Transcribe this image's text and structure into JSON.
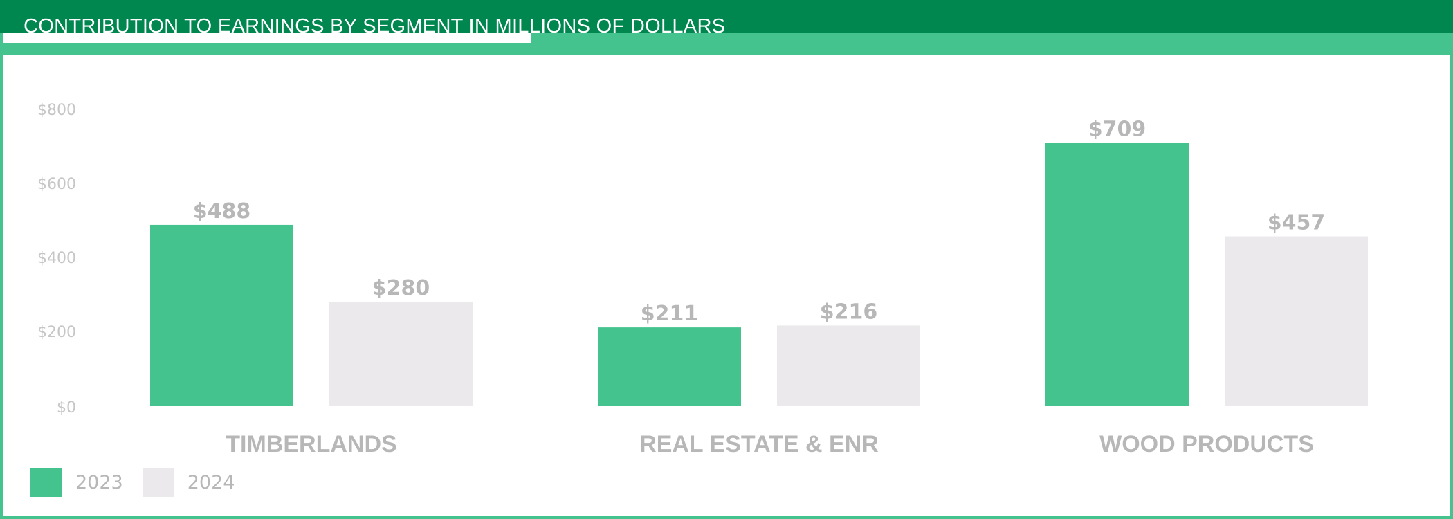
{
  "chart_data": {
    "type": "bar",
    "title": "CONTRIBUTION TO EARNINGS BY SEGMENT IN MILLIONS OF DOLLARS",
    "categories": [
      "TIMBERLANDS",
      "REAL ESTATE & ENR",
      "WOOD PRODUCTS"
    ],
    "series": [
      {
        "name": "2023",
        "values": [
          488,
          211,
          709
        ],
        "labels": [
          "$488",
          "$211",
          "$709"
        ],
        "color": "#45c38f"
      },
      {
        "name": "2024",
        "values": [
          280,
          216,
          457
        ],
        "labels": [
          "$280",
          "$216",
          "$457"
        ],
        "color": "#ebe9ec"
      }
    ],
    "yticks": [
      0,
      200,
      400,
      600,
      800
    ],
    "ytick_labels": [
      "$0",
      "$200",
      "$400",
      "$600",
      "$800"
    ],
    "ylim": [
      0,
      800
    ],
    "grid": false,
    "legend_position": "bottom-left"
  },
  "colors": {
    "header_dark": "#00864f",
    "header_light": "#45c38f",
    "text_gray": "#b7b7b7"
  }
}
